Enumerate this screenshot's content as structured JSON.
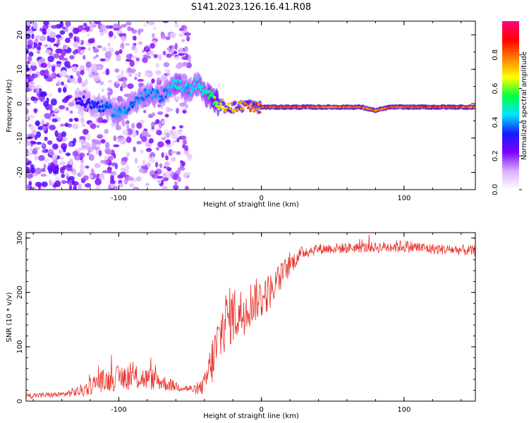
{
  "title": "S141.2023.126.16.41.R08",
  "chart_data": [
    {
      "type": "heatmap",
      "name": "spectrogram",
      "xlabel": "Height of straight line (km)",
      "ylabel": "Frequency (Hz)",
      "xlim": [
        -165,
        150
      ],
      "ylim": [
        -25,
        24
      ],
      "x_ticks": [
        -100,
        0,
        100
      ],
      "y_ticks": [
        -20,
        -10,
        0,
        10,
        20
      ],
      "colorbar": {
        "label": "Normalized spectral amplitude",
        "range": [
          0,
          1
        ],
        "ticks": [
          0.0,
          0.2,
          0.4,
          0.6,
          0.8
        ],
        "tick_labels": [
          "0.0",
          "0.2",
          "0.4",
          "0.6",
          "0.8"
        ],
        "colors": [
          "#ffffff",
          "#d9b0ff",
          "#7a00ff",
          "#1a1aff",
          "#00e5ff",
          "#00ff40",
          "#ffff00",
          "#ff8000",
          "#ff0000",
          "#ff0080"
        ]
      },
      "ridge": {
        "x": [
          -150,
          -130,
          -120,
          -110,
          -100,
          -90,
          -80,
          -70,
          -60,
          -50,
          -45,
          -40,
          -35,
          -30,
          -25,
          -20,
          -15,
          -10,
          -5,
          0,
          10,
          30,
          50,
          70,
          80,
          90,
          100,
          120,
          140,
          150
        ],
        "freq": [
          2,
          1,
          0,
          -1,
          -3,
          0,
          3,
          2,
          6,
          4,
          6,
          3,
          2,
          0,
          -1,
          -1,
          -1,
          0,
          -1,
          -1,
          -1,
          -1,
          -1,
          -1,
          -2,
          -1,
          -1,
          -1,
          -1,
          -1
        ],
        "amplitude": [
          0.2,
          0.3,
          0.35,
          0.4,
          0.45,
          0.4,
          0.45,
          0.4,
          0.5,
          0.45,
          0.5,
          0.5,
          0.6,
          0.7,
          0.75,
          0.8,
          0.8,
          0.85,
          0.85,
          0.9,
          0.9,
          0.9,
          0.85,
          0.9,
          0.85,
          0.9,
          0.9,
          0.9,
          0.9,
          0.85
        ]
      }
    },
    {
      "type": "line",
      "name": "snr",
      "xlabel": "Height of straight line (km)",
      "ylabel": "SNR (10 * v/v)",
      "xlim": [
        -165,
        150
      ],
      "ylim": [
        0,
        310
      ],
      "x_ticks": [
        -100,
        0,
        100
      ],
      "y_ticks": [
        0,
        100,
        200,
        300
      ],
      "line_color": "#e8302a",
      "envelope": {
        "x": [
          -165,
          -140,
          -125,
          -115,
          -105,
          -95,
          -85,
          -75,
          -65,
          -55,
          -45,
          -40,
          -35,
          -30,
          -25,
          -20,
          -15,
          -10,
          -5,
          0,
          5,
          10,
          15,
          20,
          25,
          30,
          40,
          60,
          80,
          100,
          120,
          140,
          150
        ],
        "y": [
          10,
          12,
          20,
          35,
          40,
          45,
          42,
          40,
          30,
          25,
          20,
          30,
          70,
          110,
          150,
          160,
          160,
          175,
          185,
          190,
          200,
          215,
          235,
          250,
          265,
          275,
          280,
          282,
          283,
          285,
          280,
          278,
          276
        ],
        "noise": [
          5,
          5,
          12,
          20,
          22,
          25,
          22,
          20,
          12,
          8,
          8,
          20,
          45,
          55,
          55,
          55,
          50,
          45,
          40,
          40,
          35,
          30,
          25,
          20,
          15,
          12,
          10,
          10,
          10,
          12,
          10,
          10,
          10
        ]
      }
    }
  ]
}
